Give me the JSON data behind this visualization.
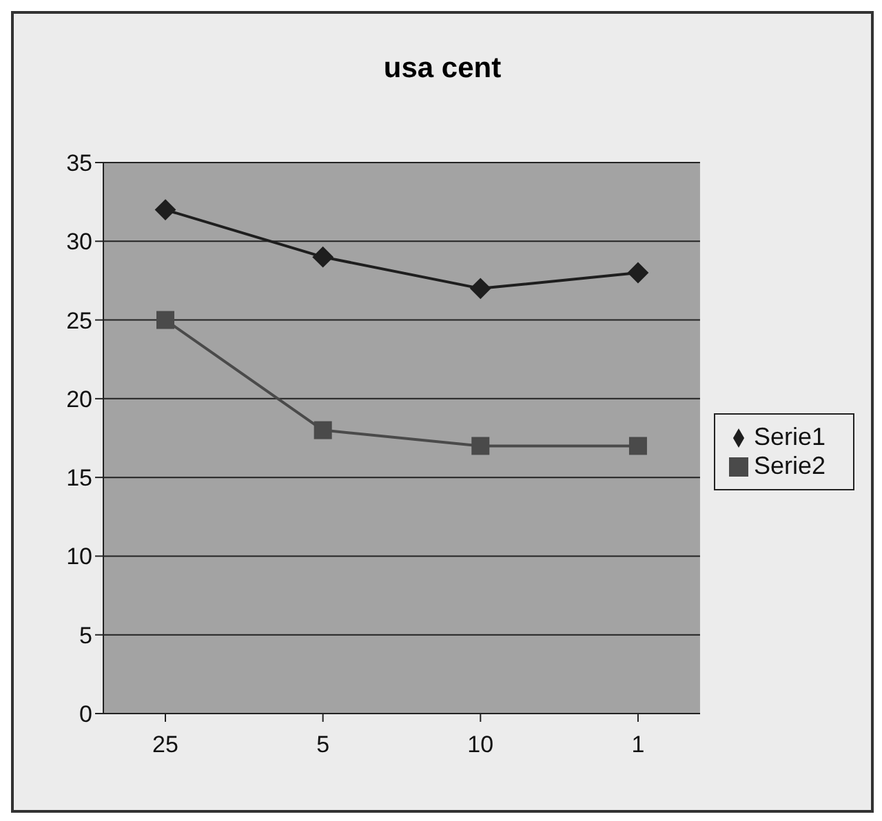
{
  "chart_data": {
    "type": "line",
    "title": "usa cent",
    "categories": [
      "25",
      "5",
      "10",
      "1"
    ],
    "series": [
      {
        "name": "Serie1",
        "color": "#1e1e1e",
        "marker": "diamond",
        "values": [
          32,
          29,
          27,
          28
        ]
      },
      {
        "name": "Serie2",
        "color": "#4a4a4a",
        "marker": "square",
        "values": [
          25,
          18,
          17,
          17
        ]
      }
    ],
    "ylim": [
      0,
      35
    ],
    "yticks": [
      0,
      5,
      10,
      15,
      20,
      25,
      30,
      35
    ],
    "grid": "y",
    "legend": "right"
  }
}
